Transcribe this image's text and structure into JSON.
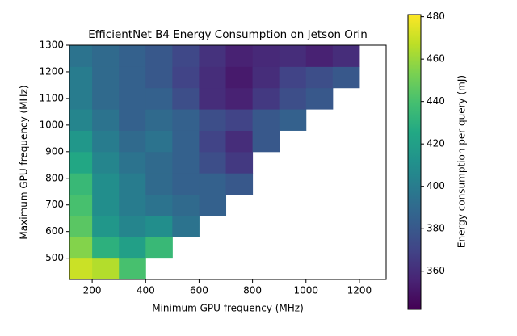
{
  "chart_data": {
    "type": "heatmap",
    "title": "EfficientNet B4 Energy Consumption on Jetson Orin",
    "x_label": "Minimum GPU frequency (MHz)",
    "y_label": "Maximum GPU frequency (MHz)",
    "colorbar_label": "Energy consumption per query (mJ)",
    "colormap": "viridis",
    "x": [
      150,
      250,
      350,
      450,
      550,
      650,
      750,
      850,
      950,
      1050,
      1150,
      1250
    ],
    "y": [
      460,
      540,
      620,
      700,
      780,
      860,
      940,
      1020,
      1100,
      1180,
      1260
    ],
    "values": [
      [
        470,
        465,
        440,
        null,
        null,
        null,
        null,
        null,
        null,
        null,
        null,
        null
      ],
      [
        455,
        430,
        420,
        435,
        null,
        null,
        null,
        null,
        null,
        null,
        null,
        null
      ],
      [
        445,
        415,
        405,
        410,
        395,
        null,
        null,
        null,
        null,
        null,
        null,
        null
      ],
      [
        440,
        410,
        400,
        395,
        390,
        385,
        null,
        null,
        null,
        null,
        null,
        null
      ],
      [
        435,
        410,
        400,
        390,
        385,
        385,
        380,
        null,
        null,
        null,
        null,
        null
      ],
      [
        425,
        405,
        395,
        390,
        385,
        375,
        365,
        null,
        null,
        null,
        null,
        null
      ],
      [
        415,
        400,
        390,
        395,
        385,
        370,
        360,
        380,
        null,
        null,
        null,
        null
      ],
      [
        405,
        395,
        385,
        390,
        385,
        375,
        370,
        380,
        385,
        null,
        null,
        null
      ],
      [
        400,
        390,
        385,
        385,
        375,
        360,
        355,
        365,
        375,
        380,
        null,
        null
      ],
      [
        400,
        390,
        385,
        380,
        370,
        360,
        352,
        360,
        370,
        375,
        380,
        null
      ],
      [
        395,
        390,
        385,
        380,
        372,
        362,
        355,
        358,
        360,
        355,
        360,
        null
      ]
    ],
    "xlim": [
      115,
      1300
    ],
    "ylim": [
      420,
      1300
    ],
    "xticks": [
      200,
      400,
      600,
      800,
      1000,
      1200
    ],
    "yticks": [
      500,
      600,
      700,
      800,
      900,
      1000,
      1100,
      1200,
      1300
    ],
    "clim": [
      342,
      481
    ],
    "cticks": [
      360,
      380,
      400,
      420,
      440,
      460,
      480
    ]
  }
}
